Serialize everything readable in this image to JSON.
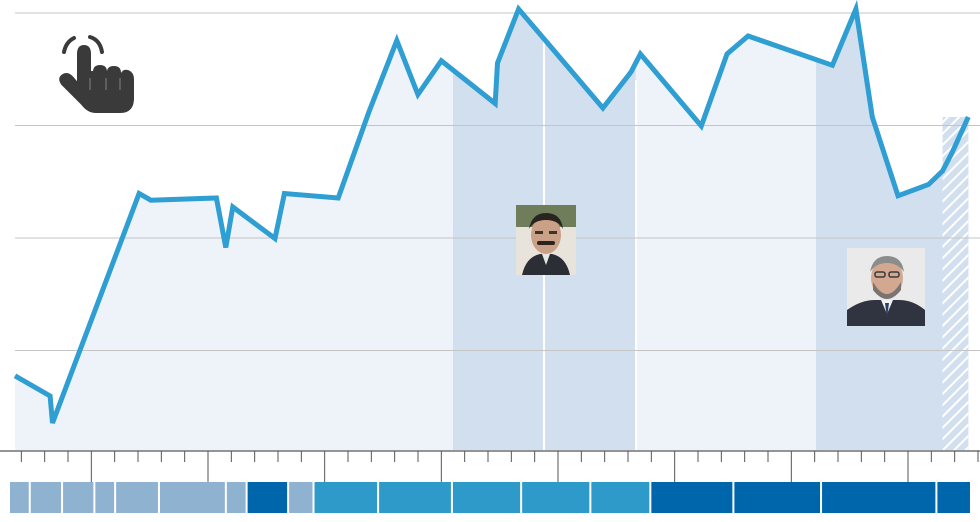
{
  "chart_data": {
    "type": "area",
    "title": "",
    "xlabel": "",
    "ylabel": "",
    "grid": true,
    "ylim": [
      0,
      100
    ],
    "x_tick_count": 42,
    "x": [
      0,
      1.5,
      1.6,
      5.3,
      5.8,
      8.6,
      9.0,
      9.3,
      11.1,
      11.5,
      13.8,
      15.1,
      16.3,
      17.2,
      18.2,
      20.5,
      20.6,
      21.5,
      25.1,
      26.3,
      26.7,
      29.3,
      30.4,
      31.3,
      34.9,
      35.9,
      36.6,
      37.7,
      39.0,
      39.6,
      40.0,
      40.7
    ],
    "y": [
      16.5,
      12,
      6,
      57,
      55.5,
      56,
      45,
      54,
      47,
      57,
      56,
      75,
      91,
      79,
      86.5,
      77,
      86,
      98,
      76,
      84,
      88,
      72,
      88,
      92,
      85.5,
      98,
      74,
      56.5,
      59,
      62,
      66,
      74
    ],
    "projection_x": [
      39.6,
      40.7
    ],
    "highlight_bands": [
      {
        "from": 18.7,
        "to": 26.5,
        "color": "#d2dfee"
      },
      {
        "from": 34.2,
        "to": 41.2,
        "color": "#d2dfee"
      }
    ],
    "base_color": "#eef3f9",
    "line_color": "#2e9ed3",
    "grid_color": "#c4c4c4",
    "timeline": {
      "blocks": [
        {
          "from": 0,
          "to": 0.9,
          "color": "#8fb2d1"
        },
        {
          "from": 0.9,
          "to": 2.3,
          "color": "#8fb2d1"
        },
        {
          "from": 2.3,
          "to": 3.7,
          "color": "#8fb2d1"
        },
        {
          "from": 3.7,
          "to": 4.6,
          "color": "#8fb2d1"
        },
        {
          "from": 4.6,
          "to": 6.5,
          "color": "#8fb2d1"
        },
        {
          "from": 6.5,
          "to": 9.4,
          "color": "#8fb2d1"
        },
        {
          "from": 9.4,
          "to": 10.3,
          "color": "#8fb2d1"
        },
        {
          "from": 10.3,
          "to": 12.1,
          "color": "#0066ac"
        },
        {
          "from": 12.1,
          "to": 13.2,
          "color": "#8fb2d1"
        },
        {
          "from": 13.2,
          "to": 16.0,
          "color": "#2e9ac9"
        },
        {
          "from": 16.0,
          "to": 19.2,
          "color": "#2e9ac9"
        },
        {
          "from": 19.2,
          "to": 22.2,
          "color": "#2e9ac9"
        },
        {
          "from": 22.2,
          "to": 25.2,
          "color": "#2e9ac9"
        },
        {
          "from": 25.2,
          "to": 27.8,
          "color": "#2e9ac9"
        },
        {
          "from": 27.8,
          "to": 31.4,
          "color": "#0066ac"
        },
        {
          "from": 31.4,
          "to": 35.2,
          "color": "#0066ac"
        },
        {
          "from": 35.2,
          "to": 40.2,
          "color": "#0066ac"
        },
        {
          "from": 40.2,
          "to": 41.7,
          "color": "#0066ac"
        }
      ]
    }
  },
  "icons": {
    "hand": "hand-pointer-icon"
  },
  "photos": [
    {
      "name": "politician-photo-1",
      "description_color": "#5a4a3a"
    },
    {
      "name": "politician-photo-2",
      "description_color": "#6a6a6a"
    }
  ]
}
